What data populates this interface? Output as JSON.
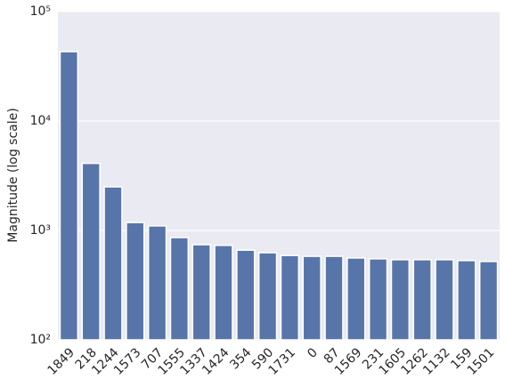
{
  "chart_data": {
    "type": "bar",
    "y_label": "Magnitude (log scale)",
    "y_scale": "log",
    "categories": [
      "1849",
      "218",
      "1244",
      "1573",
      "707",
      "1555",
      "1337",
      "1424",
      "354",
      "590",
      "1731",
      "0",
      "87",
      "1569",
      "231",
      "1605",
      "1262",
      "1132",
      "159",
      "1501"
    ],
    "values": [
      43000,
      4100,
      2500,
      1180,
      1100,
      860,
      740,
      730,
      660,
      625,
      590,
      580,
      580,
      560,
      550,
      540,
      540,
      540,
      530,
      520
    ],
    "color": "#5875a9",
    "ylim": [
      100,
      100000
    ],
    "yticks": [
      {
        "value": 100,
        "label": "10²"
      },
      {
        "value": 1000,
        "label": "10³"
      },
      {
        "value": 10000,
        "label": "10⁴"
      },
      {
        "value": 100000,
        "label": "10⁵"
      }
    ],
    "grid": true
  }
}
